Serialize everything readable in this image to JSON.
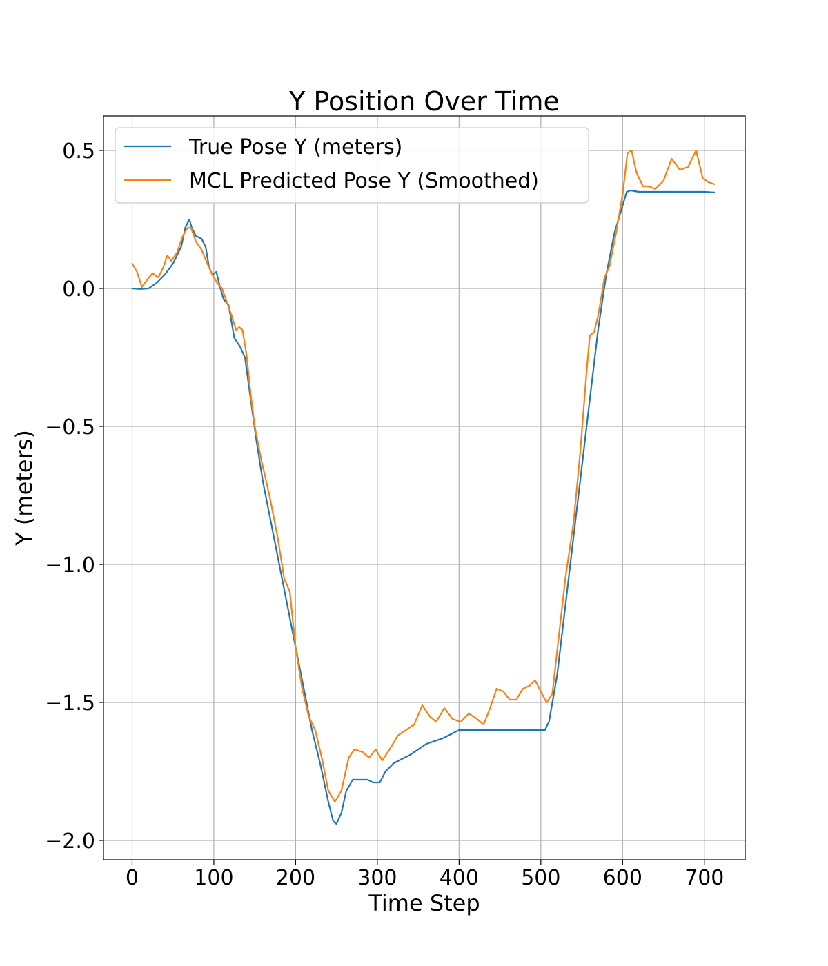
{
  "chart_data": {
    "type": "line",
    "title": "Y Position Over Time",
    "xlabel": "Time Step",
    "ylabel": "Y (meters)",
    "xlim": [
      -35,
      750
    ],
    "ylim": [
      -2.07,
      0.625
    ],
    "xticks": [
      0,
      100,
      200,
      300,
      400,
      500,
      600,
      700
    ],
    "yticks": [
      0.5,
      0.0,
      -0.5,
      -1.0,
      -1.5,
      -2.0
    ],
    "xtick_labels": [
      "0",
      "100",
      "200",
      "300",
      "400",
      "500",
      "600",
      "700"
    ],
    "ytick_labels": [
      "0.5",
      "0.0",
      "−0.5",
      "−1.0",
      "−1.5",
      "−2.0"
    ],
    "grid": true,
    "legend_position": "upper-left",
    "series": [
      {
        "name": "True Pose Y (meters)",
        "color": "#1f77b4",
        "points": [
          [
            0,
            0.0
          ],
          [
            10,
            -0.002
          ],
          [
            20,
            0.0
          ],
          [
            30,
            0.02
          ],
          [
            40,
            0.05
          ],
          [
            50,
            0.09
          ],
          [
            60,
            0.15
          ],
          [
            65,
            0.22
          ],
          [
            70,
            0.25
          ],
          [
            73,
            0.22
          ],
          [
            78,
            0.19
          ],
          [
            85,
            0.18
          ],
          [
            90,
            0.15
          ],
          [
            94,
            0.08
          ],
          [
            98,
            0.05
          ],
          [
            103,
            0.06
          ],
          [
            108,
            0.0
          ],
          [
            112,
            -0.04
          ],
          [
            118,
            -0.06
          ],
          [
            125,
            -0.18
          ],
          [
            132,
            -0.21
          ],
          [
            138,
            -0.25
          ],
          [
            145,
            -0.4
          ],
          [
            152,
            -0.55
          ],
          [
            160,
            -0.7
          ],
          [
            170,
            -0.85
          ],
          [
            180,
            -1.0
          ],
          [
            190,
            -1.15
          ],
          [
            200,
            -1.3
          ],
          [
            210,
            -1.45
          ],
          [
            220,
            -1.6
          ],
          [
            230,
            -1.72
          ],
          [
            240,
            -1.86
          ],
          [
            246,
            -1.93
          ],
          [
            250,
            -1.94
          ],
          [
            256,
            -1.9
          ],
          [
            262,
            -1.82
          ],
          [
            270,
            -1.78
          ],
          [
            280,
            -1.78
          ],
          [
            288,
            -1.78
          ],
          [
            295,
            -1.79
          ],
          [
            303,
            -1.79
          ],
          [
            310,
            -1.75
          ],
          [
            320,
            -1.72
          ],
          [
            340,
            -1.69
          ],
          [
            360,
            -1.65
          ],
          [
            380,
            -1.63
          ],
          [
            400,
            -1.6
          ],
          [
            440,
            -1.6
          ],
          [
            480,
            -1.6
          ],
          [
            505,
            -1.6
          ],
          [
            510,
            -1.57
          ],
          [
            520,
            -1.4
          ],
          [
            530,
            -1.15
          ],
          [
            540,
            -0.9
          ],
          [
            550,
            -0.65
          ],
          [
            560,
            -0.4
          ],
          [
            570,
            -0.15
          ],
          [
            580,
            0.05
          ],
          [
            590,
            0.2
          ],
          [
            600,
            0.3
          ],
          [
            605,
            0.35
          ],
          [
            610,
            0.355
          ],
          [
            620,
            0.35
          ],
          [
            650,
            0.35
          ],
          [
            680,
            0.35
          ],
          [
            700,
            0.35
          ],
          [
            712,
            0.348
          ]
        ]
      },
      {
        "name": "MCL Predicted Pose Y (Smoothed)",
        "color": "#ff7f0e",
        "points": [
          [
            0,
            0.09
          ],
          [
            6,
            0.06
          ],
          [
            12,
            0.005
          ],
          [
            18,
            0.03
          ],
          [
            25,
            0.055
          ],
          [
            32,
            0.04
          ],
          [
            38,
            0.075
          ],
          [
            43,
            0.12
          ],
          [
            48,
            0.1
          ],
          [
            55,
            0.13
          ],
          [
            62,
            0.19
          ],
          [
            68,
            0.22
          ],
          [
            72,
            0.22
          ],
          [
            78,
            0.17
          ],
          [
            85,
            0.14
          ],
          [
            92,
            0.09
          ],
          [
            98,
            0.05
          ],
          [
            104,
            0.02
          ],
          [
            110,
            0.0
          ],
          [
            116,
            -0.05
          ],
          [
            122,
            -0.1
          ],
          [
            127,
            -0.15
          ],
          [
            131,
            -0.14
          ],
          [
            135,
            -0.15
          ],
          [
            140,
            -0.24
          ],
          [
            145,
            -0.38
          ],
          [
            150,
            -0.5
          ],
          [
            158,
            -0.62
          ],
          [
            168,
            -0.75
          ],
          [
            178,
            -0.9
          ],
          [
            186,
            -1.05
          ],
          [
            193,
            -1.1
          ],
          [
            200,
            -1.3
          ],
          [
            208,
            -1.45
          ],
          [
            216,
            -1.55
          ],
          [
            224,
            -1.6
          ],
          [
            232,
            -1.7
          ],
          [
            240,
            -1.82
          ],
          [
            248,
            -1.86
          ],
          [
            256,
            -1.82
          ],
          [
            265,
            -1.7
          ],
          [
            272,
            -1.67
          ],
          [
            282,
            -1.68
          ],
          [
            290,
            -1.7
          ],
          [
            298,
            -1.67
          ],
          [
            306,
            -1.71
          ],
          [
            315,
            -1.67
          ],
          [
            325,
            -1.62
          ],
          [
            335,
            -1.6
          ],
          [
            345,
            -1.58
          ],
          [
            355,
            -1.51
          ],
          [
            364,
            -1.55
          ],
          [
            372,
            -1.57
          ],
          [
            382,
            -1.52
          ],
          [
            392,
            -1.56
          ],
          [
            402,
            -1.57
          ],
          [
            412,
            -1.54
          ],
          [
            422,
            -1.56
          ],
          [
            430,
            -1.58
          ],
          [
            438,
            -1.52
          ],
          [
            446,
            -1.45
          ],
          [
            454,
            -1.46
          ],
          [
            462,
            -1.49
          ],
          [
            470,
            -1.49
          ],
          [
            478,
            -1.45
          ],
          [
            486,
            -1.44
          ],
          [
            493,
            -1.42
          ],
          [
            500,
            -1.46
          ],
          [
            507,
            -1.5
          ],
          [
            514,
            -1.47
          ],
          [
            522,
            -1.26
          ],
          [
            530,
            -1.05
          ],
          [
            540,
            -0.85
          ],
          [
            548,
            -0.6
          ],
          [
            556,
            -0.3
          ],
          [
            560,
            -0.17
          ],
          [
            565,
            -0.16
          ],
          [
            570,
            -0.1
          ],
          [
            578,
            0.04
          ],
          [
            584,
            0.08
          ],
          [
            592,
            0.2
          ],
          [
            600,
            0.34
          ],
          [
            606,
            0.49
          ],
          [
            611,
            0.5
          ],
          [
            617,
            0.42
          ],
          [
            625,
            0.37
          ],
          [
            632,
            0.37
          ],
          [
            640,
            0.36
          ],
          [
            650,
            0.39
          ],
          [
            660,
            0.47
          ],
          [
            670,
            0.43
          ],
          [
            680,
            0.44
          ],
          [
            690,
            0.5
          ],
          [
            698,
            0.4
          ],
          [
            705,
            0.385
          ],
          [
            712,
            0.378
          ]
        ]
      }
    ]
  }
}
